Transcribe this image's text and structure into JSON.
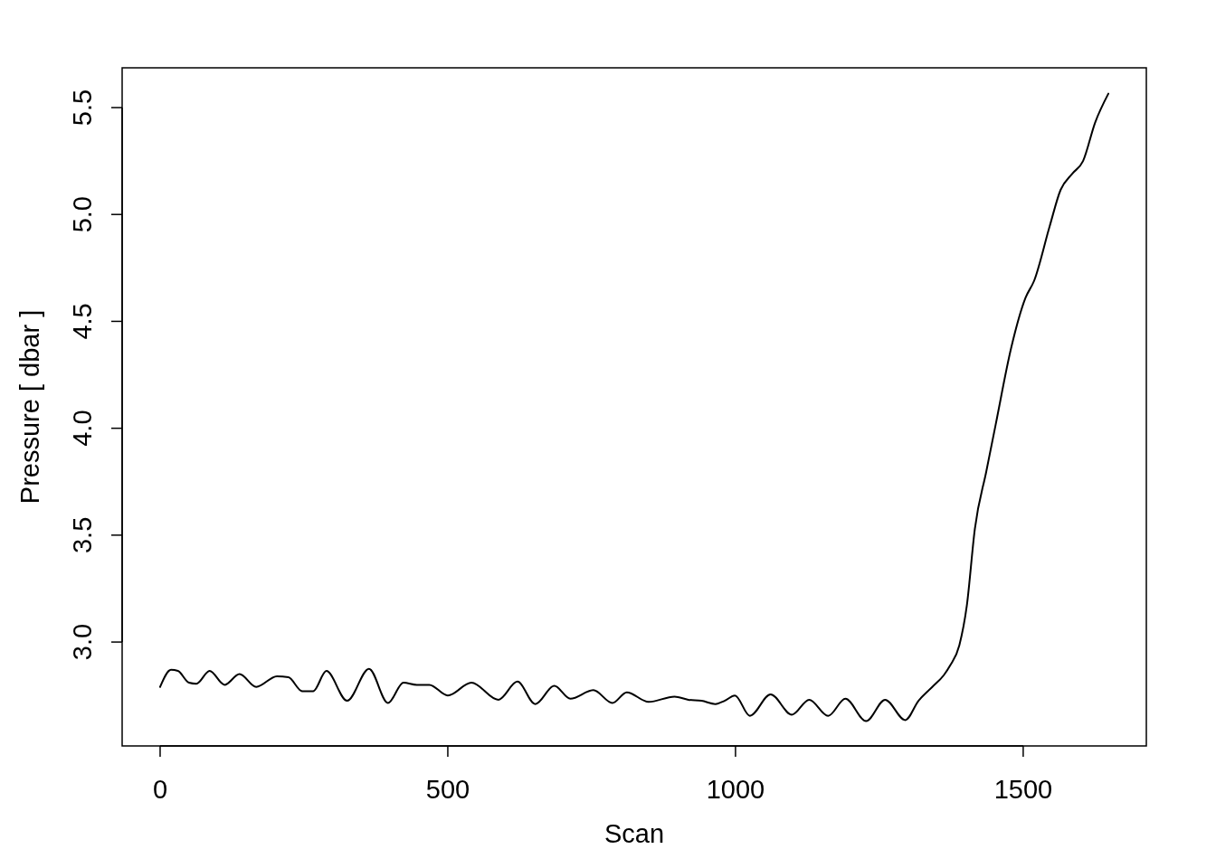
{
  "chart_data": {
    "type": "line",
    "xlabel": "Scan",
    "ylabel": "Pressure [ dbar ]",
    "x": [
      0,
      19,
      31,
      50,
      63,
      86,
      112,
      138,
      167,
      203,
      223,
      247,
      266,
      289,
      325,
      363,
      396,
      423,
      446,
      468,
      500,
      541,
      588,
      621,
      652,
      685,
      713,
      753,
      786,
      811,
      849,
      894,
      918,
      941,
      965,
      981,
      999,
      1025,
      1061,
      1098,
      1128,
      1161,
      1191,
      1227,
      1260,
      1295,
      1318,
      1342,
      1362,
      1373,
      1389,
      1402,
      1416,
      1436,
      1452,
      1479,
      1504,
      1519,
      1546,
      1565,
      1585,
      1604,
      1625,
      1648
    ],
    "series": [
      {
        "color": "#000000",
        "values": [
          2.79,
          2.87,
          2.865,
          2.81,
          2.805,
          2.865,
          2.8,
          2.85,
          2.79,
          2.84,
          2.835,
          2.77,
          2.77,
          2.865,
          2.725,
          2.875,
          2.715,
          2.81,
          2.8,
          2.8,
          2.75,
          2.81,
          2.73,
          2.815,
          2.71,
          2.795,
          2.735,
          2.775,
          2.715,
          2.765,
          2.72,
          2.745,
          2.73,
          2.725,
          2.71,
          2.725,
          2.75,
          2.655,
          2.755,
          2.66,
          2.73,
          2.655,
          2.735,
          2.63,
          2.73,
          2.635,
          2.725,
          2.79,
          2.845,
          2.89,
          2.985,
          3.17,
          3.53,
          3.8,
          4.015,
          4.375,
          4.61,
          4.69,
          4.945,
          5.115,
          5.19,
          5.25,
          5.43,
          5.565
        ]
      }
    ],
    "xlim": [
      -66,
      1714
    ],
    "ylim": [
      2.514,
      5.686
    ],
    "xticks": [
      0,
      500,
      1000,
      1500
    ],
    "yticks": [
      {
        "value": 3,
        "label": "3.0"
      },
      {
        "value": 3.5,
        "label": "3.5"
      },
      {
        "value": 4,
        "label": "4.0"
      },
      {
        "value": 4.5,
        "label": "4.5"
      },
      {
        "value": 5,
        "label": "5.0"
      },
      {
        "value": 5.5,
        "label": "5.5"
      }
    ],
    "grid": false,
    "marker": "none",
    "line_style": "solid"
  }
}
